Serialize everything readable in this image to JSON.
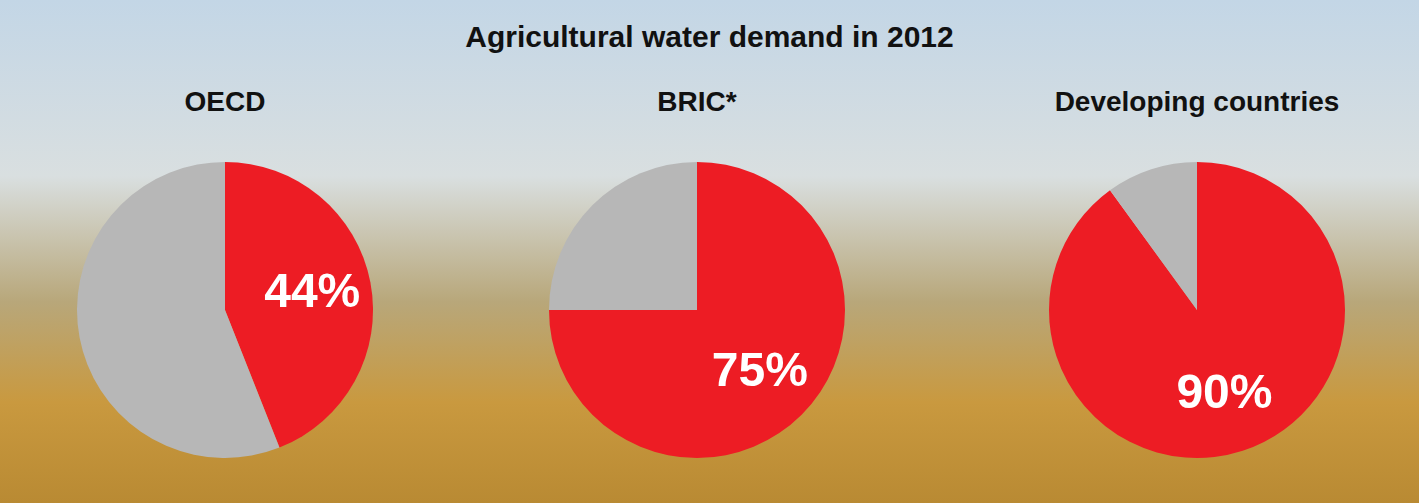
{
  "title": "Agricultural water demand in 2012",
  "chart_data": [
    {
      "type": "pie",
      "title": "OECD",
      "values": [
        44,
        56
      ],
      "colors": [
        "#ed1c24",
        "#b7b7b7"
      ],
      "data_labels": true,
      "value_labels": [
        "44%",
        null
      ]
    },
    {
      "type": "pie",
      "title": "BRIC*",
      "values": [
        75,
        25
      ],
      "colors": [
        "#ed1c24",
        "#b7b7b7"
      ],
      "data_labels": true,
      "value_labels": [
        "75%",
        null
      ]
    },
    {
      "type": "pie",
      "title": "Developing countries",
      "values": [
        90,
        10
      ],
      "colors": [
        "#ed1c24",
        "#b7b7b7"
      ],
      "data_labels": true,
      "value_labels": [
        "90%",
        null
      ]
    }
  ]
}
